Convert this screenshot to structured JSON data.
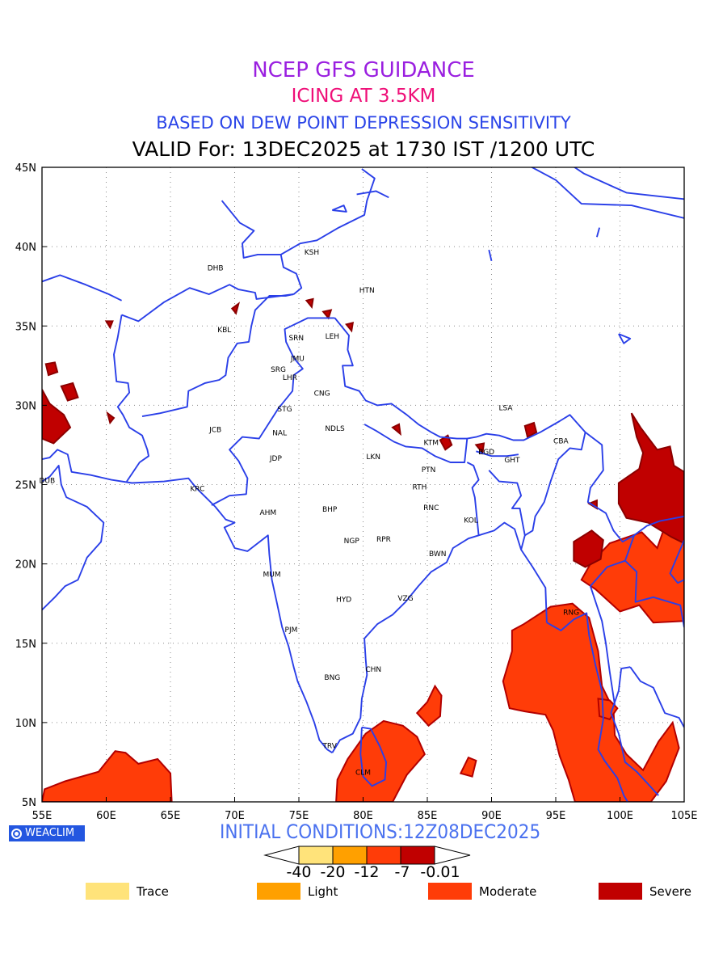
{
  "header": {
    "line1": "NCEP GFS GUIDANCE",
    "line2": "ICING AT 3.5KM",
    "line3": "BASED ON DEW POINT DEPRESSION SENSITIVITY",
    "line4": "VALID For: 13DEC2025 at 1730 IST /1200 UTC"
  },
  "map": {
    "lon_labels": [
      "55E",
      "60E",
      "65E",
      "70E",
      "75E",
      "80E",
      "85E",
      "90E",
      "95E",
      "100E",
      "105E"
    ],
    "lat_labels": [
      "45N",
      "40N",
      "35N",
      "30N",
      "25N",
      "20N",
      "15N",
      "10N",
      "5N"
    ],
    "stations": [
      {
        "label": "KSH",
        "lon": 76.0,
        "lat": 39.5
      },
      {
        "label": "DHB",
        "lon": 68.5,
        "lat": 38.5
      },
      {
        "label": "HTN",
        "lon": 80.3,
        "lat": 37.1
      },
      {
        "label": "KBL",
        "lon": 69.2,
        "lat": 34.6
      },
      {
        "label": "SRN",
        "lon": 74.8,
        "lat": 34.1
      },
      {
        "label": "LEH",
        "lon": 77.6,
        "lat": 34.2
      },
      {
        "label": "JMU",
        "lon": 74.9,
        "lat": 32.8
      },
      {
        "label": "SRG",
        "lon": 73.4,
        "lat": 32.1
      },
      {
        "label": "LHR",
        "lon": 74.3,
        "lat": 31.6
      },
      {
        "label": "CNG",
        "lon": 76.8,
        "lat": 30.6
      },
      {
        "label": "STG",
        "lon": 73.9,
        "lat": 29.6
      },
      {
        "label": "LSA",
        "lon": 91.1,
        "lat": 29.7
      },
      {
        "label": "JCB",
        "lon": 68.5,
        "lat": 28.3
      },
      {
        "label": "NAL",
        "lon": 73.5,
        "lat": 28.1
      },
      {
        "label": "NDLS",
        "lon": 77.8,
        "lat": 28.4
      },
      {
        "label": "CBA",
        "lon": 95.4,
        "lat": 27.6
      },
      {
        "label": "KTM",
        "lon": 85.3,
        "lat": 27.5
      },
      {
        "label": "BGD",
        "lon": 89.6,
        "lat": 26.9
      },
      {
        "label": "GHT",
        "lon": 91.6,
        "lat": 26.4
      },
      {
        "label": "JDP",
        "lon": 73.2,
        "lat": 26.5
      },
      {
        "label": "LKN",
        "lon": 80.8,
        "lat": 26.6
      },
      {
        "label": "PTN",
        "lon": 85.1,
        "lat": 25.8
      },
      {
        "label": "DUB",
        "lon": 55.4,
        "lat": 25.1
      },
      {
        "label": "RTH",
        "lon": 84.4,
        "lat": 24.7
      },
      {
        "label": "KRC",
        "lon": 67.1,
        "lat": 24.6
      },
      {
        "label": "RNC",
        "lon": 85.3,
        "lat": 23.4
      },
      {
        "label": "AHM",
        "lon": 72.6,
        "lat": 23.1
      },
      {
        "label": "BHP",
        "lon": 77.4,
        "lat": 23.3
      },
      {
        "label": "KOL",
        "lon": 88.4,
        "lat": 22.6
      },
      {
        "label": "NGP",
        "lon": 79.1,
        "lat": 21.3
      },
      {
        "label": "RPR",
        "lon": 81.6,
        "lat": 21.4
      },
      {
        "label": "BWN",
        "lon": 85.8,
        "lat": 20.5
      },
      {
        "label": "MUM",
        "lon": 72.9,
        "lat": 19.2
      },
      {
        "label": "HYD",
        "lon": 78.5,
        "lat": 17.6
      },
      {
        "label": "VZG",
        "lon": 83.3,
        "lat": 17.7
      },
      {
        "label": "RNG",
        "lon": 96.2,
        "lat": 16.8
      },
      {
        "label": "PJM",
        "lon": 74.4,
        "lat": 15.7
      },
      {
        "label": "CHN",
        "lon": 80.8,
        "lat": 13.2
      },
      {
        "label": "BNG",
        "lon": 77.6,
        "lat": 12.7
      },
      {
        "label": "TRV",
        "lon": 77.4,
        "lat": 8.4
      },
      {
        "label": "CLM",
        "lon": 80.0,
        "lat": 6.7
      }
    ]
  },
  "colors": {
    "coastline": "#2a3fe8",
    "trace": "#ffe37a",
    "light": "#ffa000",
    "moderate": "#ff3c08",
    "severe": "#c00000",
    "title_line1": "#9a1fe0",
    "title_line2": "#ef0f78",
    "title_line3": "#2a44e8"
  },
  "footer": {
    "brand": "WEACLIM",
    "brand_icon": "circle-logo-icon",
    "initial_conditions": "INITIAL CONDITIONS:12Z08DEC2025",
    "colorbar_labels": [
      "-40",
      "-20",
      "-12",
      "-7",
      "-0.01"
    ],
    "legend": [
      {
        "label": "Trace",
        "color": "#ffe37a"
      },
      {
        "label": "Light",
        "color": "#ffa000"
      },
      {
        "label": "Moderate",
        "color": "#ff3c08"
      },
      {
        "label": "Severe",
        "color": "#c00000"
      }
    ]
  }
}
